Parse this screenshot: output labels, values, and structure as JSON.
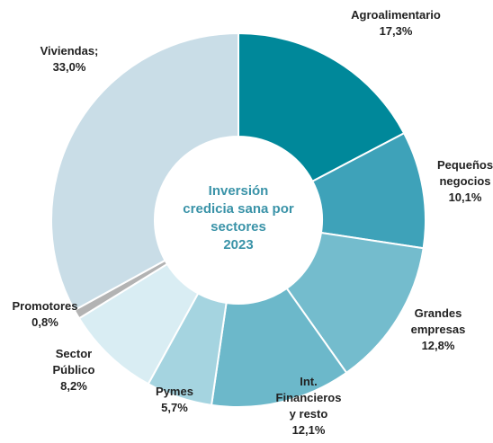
{
  "chart_data": {
    "type": "donut",
    "title": [
      "Inversión",
      "credicia sana por",
      "sectores",
      "2023"
    ],
    "categories": [
      [
        "Agroalimentario"
      ],
      [
        "Pequeños",
        "negocios"
      ],
      [
        "Grandes",
        "empresas"
      ],
      [
        "Int.",
        "Financieros",
        "y resto"
      ],
      [
        "Pymes"
      ],
      [
        "Sector",
        "Público"
      ],
      [
        "Promotores"
      ],
      [
        "Viviendas;"
      ]
    ],
    "values": [
      17.3,
      10.1,
      12.8,
      12.1,
      5.7,
      8.2,
      0.8,
      33.0
    ],
    "value_labels": [
      "17,3%",
      "10,1%",
      "12,8%",
      "12,1%",
      "5,7%",
      "8,2%",
      "0,8%",
      "33,0%"
    ],
    "colors": [
      "#00889a",
      "#3ea2b9",
      "#74bccd",
      "#6cb8ca",
      "#a5d4e0",
      "#d9edf3",
      "#b3b3b3",
      "#c9dde7"
    ]
  }
}
